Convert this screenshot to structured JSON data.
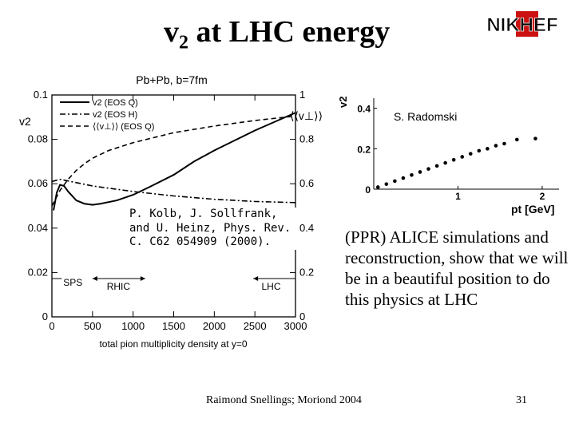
{
  "slide": {
    "title_main": "v",
    "title_sub": "2",
    "title_rest": " at LHC energy",
    "logo_text": "NIKHEF",
    "citation": "P. Kolb, J. Sollfrank, and U. Heinz, Phys. Rev. C. C62 054909 (2000).",
    "body_text": "(PPR) ALICE simulations and reconstruction, show that we will be in a beautiful position to do this physics at LHC",
    "footer": "Raimond Snellings; Moriond 2004",
    "page_number": "31"
  },
  "chart_data": [
    {
      "type": "line",
      "title": "Pb+Pb, b=7fm",
      "xlabel": "total pion multiplicity density at y=0",
      "ylabel_left": "v2",
      "ylabel_right": "⟨⟨v⊥⟩⟩",
      "xlim": [
        0,
        3000
      ],
      "ylim_left": [
        0,
        0.1
      ],
      "ylim_right": [
        0,
        1
      ],
      "x_ticks": [
        "0",
        "500",
        "1000",
        "1500",
        "2000",
        "2500",
        "3000"
      ],
      "y_ticks_left": [
        "0",
        "0.02",
        "0.04",
        "0.06",
        "0.08",
        "0.1"
      ],
      "y_ticks_right": [
        "0",
        "0.2",
        "0.4",
        "0.6",
        "0.8",
        "1"
      ],
      "legend": [
        "v2 (EOS Q)",
        "v2 (EOS H)",
        "⟨⟨v⊥⟩⟩ (EOS Q)"
      ],
      "annotations": [
        "SPS",
        "RHIC",
        "LHC"
      ],
      "series": [
        {
          "name": "v2 (EOS Q)",
          "style": "solid",
          "x": [
            20,
            60,
            100,
            150,
            200,
            300,
            400,
            500,
            600,
            800,
            1000,
            1200,
            1500,
            1750,
            2000,
            2250,
            2500,
            2750,
            3000
          ],
          "y": [
            0.048,
            0.056,
            0.0595,
            0.059,
            0.0565,
            0.0525,
            0.051,
            0.0505,
            0.051,
            0.0525,
            0.055,
            0.0585,
            0.064,
            0.07,
            0.075,
            0.0795,
            0.084,
            0.088,
            0.092
          ]
        },
        {
          "name": "v2 (EOS H)",
          "style": "dash-dot",
          "x": [
            0,
            100,
            300,
            500,
            800,
            1000,
            1500,
            2000,
            2500,
            3000
          ],
          "y": [
            0.061,
            0.062,
            0.0605,
            0.059,
            0.0575,
            0.0565,
            0.0545,
            0.053,
            0.052,
            0.0515
          ]
        },
        {
          "name": "⟨⟨v⊥⟩⟩ (EOS Q)",
          "style": "dashed",
          "axis": "right",
          "x": [
            0,
            100,
            200,
            300,
            400,
            500,
            700,
            1000,
            1500,
            2000,
            2500,
            3000
          ],
          "y": [
            0.5,
            0.57,
            0.62,
            0.66,
            0.69,
            0.715,
            0.75,
            0.785,
            0.83,
            0.86,
            0.885,
            0.905
          ]
        }
      ]
    },
    {
      "type": "scatter",
      "title": "S. Radomski",
      "xlabel": "pt [GeV]",
      "ylabel": "v2",
      "xlim": [
        0,
        2.2
      ],
      "ylim": [
        0,
        0.45
      ],
      "x_ticks": [
        "1",
        "2"
      ],
      "y_ticks": [
        "0",
        "0.2",
        "0.4"
      ],
      "x": [
        0.05,
        0.15,
        0.25,
        0.35,
        0.45,
        0.55,
        0.65,
        0.75,
        0.85,
        0.95,
        1.05,
        1.15,
        1.25,
        1.35,
        1.45,
        1.55,
        1.7,
        1.92
      ],
      "y": [
        0.01,
        0.025,
        0.04,
        0.055,
        0.07,
        0.085,
        0.1,
        0.115,
        0.13,
        0.145,
        0.16,
        0.175,
        0.19,
        0.2,
        0.215,
        0.225,
        0.245,
        0.25
      ]
    }
  ],
  "colors": {
    "background": "#ffffff",
    "logo_red": "#cc1111",
    "text": "#000000"
  }
}
